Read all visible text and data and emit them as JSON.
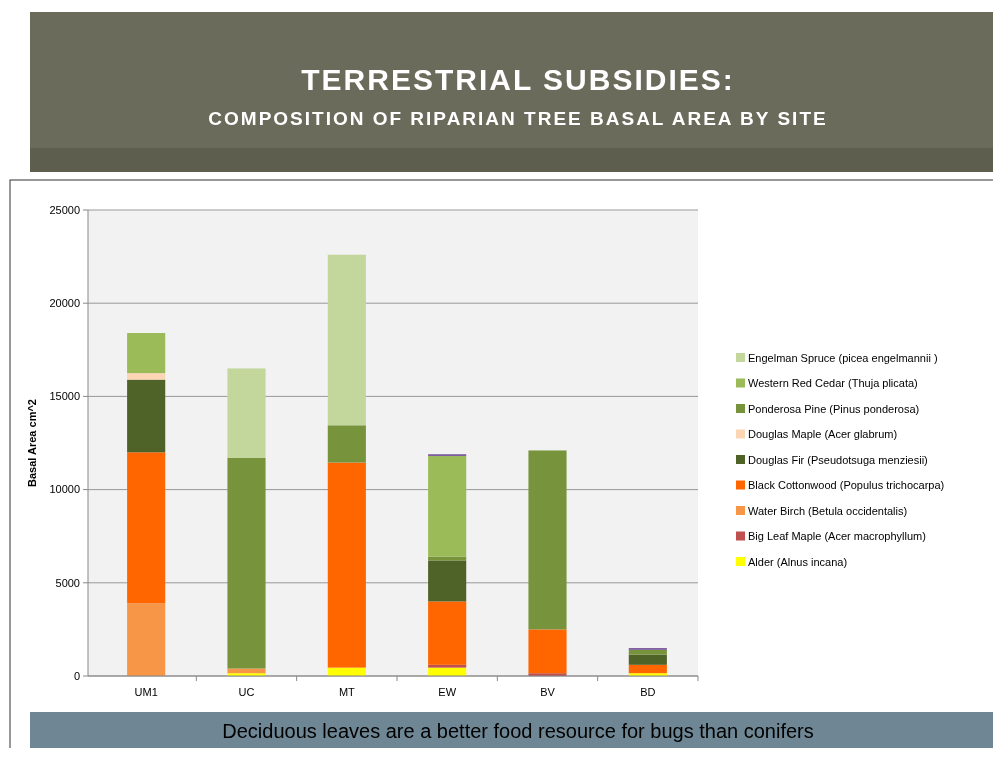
{
  "chart_data": {
    "type": "bar",
    "title": "TERRESTRIAL SUBSIDIES:",
    "subtitle": "COMPOSITION OF RIPARIAN TREE BASAL AREA BY SITE",
    "ylabel": "Basal Area cm^2",
    "categories": [
      "UM1",
      "UC",
      "MT",
      "EW",
      "BV",
      "BD"
    ],
    "stacked": true,
    "ylim": [
      0,
      25000
    ],
    "yticks": [
      0,
      5000,
      10000,
      15000,
      20000,
      25000
    ],
    "grid": "y",
    "legend": "right",
    "series": [
      {
        "name": "Alder (Alnus incana)",
        "color": "#ffff00",
        "values": [
          0,
          150,
          450,
          450,
          0,
          150
        ]
      },
      {
        "name": "Big Leaf Maple (Acer macrophyllum)",
        "color": "#c0504d",
        "values": [
          0,
          0,
          0,
          150,
          150,
          0
        ]
      },
      {
        "name": "Water Birch (Betula occidentalis)",
        "color": "#f79646",
        "values": [
          3900,
          250,
          0,
          0,
          0,
          0
        ]
      },
      {
        "name": "Black Cottonwood (Populus trichocarpa)",
        "color": "#ff6600",
        "values": [
          8100,
          0,
          11000,
          3400,
          2350,
          450
        ]
      },
      {
        "name": "Douglas Fir (Pseudotsuga menziesii)",
        "color": "#4f6228",
        "values": [
          3900,
          0,
          0,
          2200,
          0,
          550
        ]
      },
      {
        "name": "Douglas Maple (Acer glabrum)",
        "color": "#fcd5b5",
        "values": [
          350,
          0,
          0,
          0,
          0,
          0
        ]
      },
      {
        "name": "Ponderosa Pine (Pinus ponderosa)",
        "color": "#77933c",
        "values": [
          0,
          11300,
          2000,
          200,
          9600,
          250
        ]
      },
      {
        "name": "Western Red Cedar (Thuja plicata)",
        "color": "#9bbb59",
        "values": [
          2150,
          0,
          0,
          5400,
          0,
          0
        ]
      },
      {
        "name": "Engelman Spruce (picea engelmannii )",
        "color": "#c3d69b",
        "values": [
          0,
          4800,
          9150,
          0,
          0,
          0
        ]
      },
      {
        "color": "#7f5f9f",
        "values": [
          0,
          0,
          0,
          100,
          0,
          100
        ]
      }
    ],
    "annotations": [
      "Deciduous leaves are a better food resource for bugs than conifers"
    ]
  }
}
